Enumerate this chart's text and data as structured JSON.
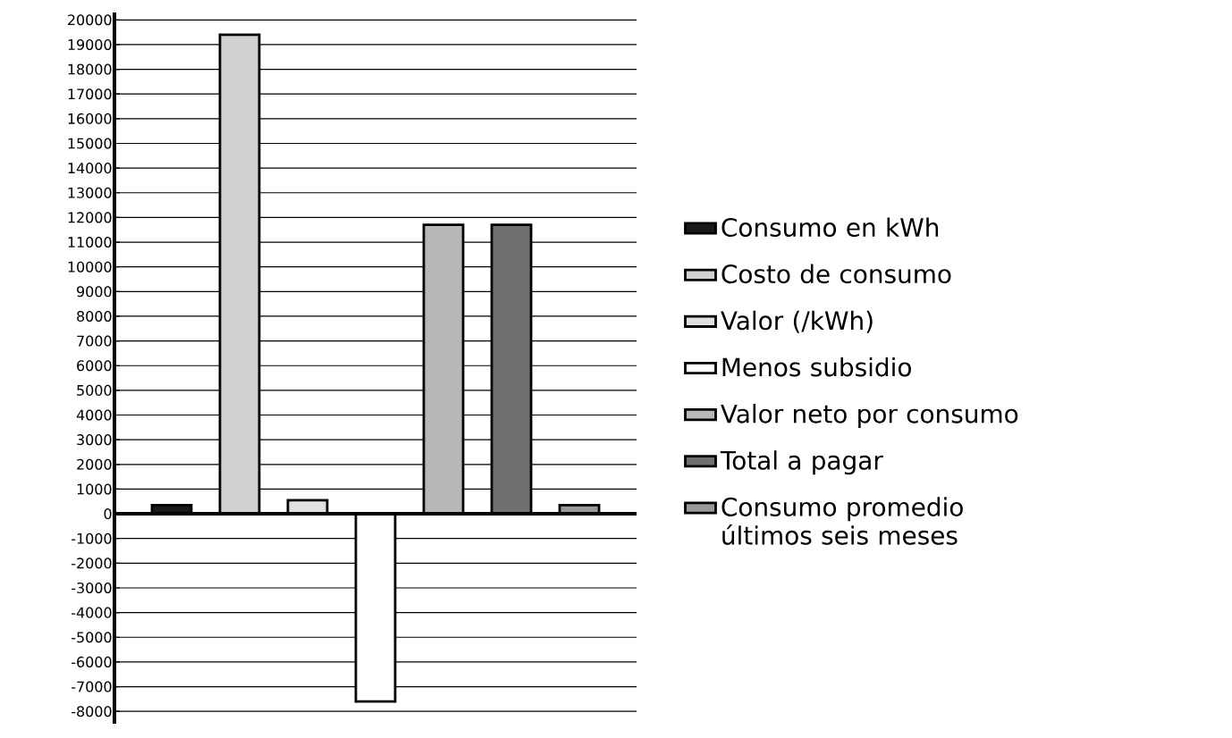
{
  "chart_data": {
    "type": "bar",
    "categories": [
      null
    ],
    "series": [
      {
        "name": "Consumo en kWh",
        "color": "#1a1a1a",
        "values": [
          350
        ]
      },
      {
        "name": "Costo de consumo",
        "color": "#d0d0d0",
        "values": [
          19400
        ]
      },
      {
        "name": "Valor (/kWh)",
        "color": "#e0e0e0",
        "values": [
          550
        ]
      },
      {
        "name": "Menos subsidio",
        "color": "#ffffff",
        "values": [
          -7600
        ]
      },
      {
        "name": "Valor neto por consumo",
        "color": "#b8b8b8",
        "values": [
          11700
        ]
      },
      {
        "name": "Total a pagar",
        "color": "#707070",
        "values": [
          11700
        ]
      },
      {
        "name": "Consumo promedio últimos seis meses",
        "color": "#999999",
        "values": [
          350
        ]
      }
    ],
    "ylim": [
      -8500,
      20300
    ],
    "yticks": [
      -8000,
      -7000,
      -6000,
      -5000,
      -4000,
      -3000,
      -2000,
      -1000,
      0,
      1000,
      2000,
      3000,
      4000,
      5000,
      6000,
      7000,
      8000,
      9000,
      10000,
      11000,
      12000,
      13000,
      14000,
      15000,
      16000,
      17000,
      18000,
      19000,
      20000
    ],
    "grid": "y",
    "legend": "right"
  }
}
